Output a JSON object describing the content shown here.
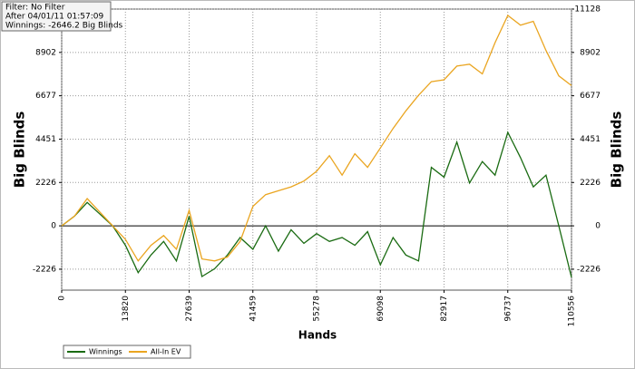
{
  "chart_data": {
    "type": "line",
    "annotations": [
      "Filter: No Filter",
      "After 04/01/11 01:57:09",
      "Winnings: -2646.2 Big Blinds"
    ],
    "x_label": "Hands",
    "y_label": "Big Blinds",
    "x": [
      0,
      2764,
      5528,
      8292,
      11056,
      13820,
      16584,
      19348,
      22112,
      24876,
      27639,
      30403,
      33167,
      35931,
      38695,
      41459,
      44223,
      46987,
      49751,
      52515,
      55278,
      58042,
      60806,
      63570,
      66334,
      69098,
      71862,
      74626,
      77390,
      80154,
      82917,
      85681,
      88445,
      91209,
      93973,
      96737,
      99501,
      102265,
      105029,
      107793,
      110556
    ],
    "series": [
      {
        "name": "Winnings",
        "color": "#1a6b12",
        "values": [
          0,
          500,
          1200,
          600,
          0,
          -1000,
          -2400,
          -1500,
          -800,
          -1800,
          500,
          -2600,
          -2200,
          -1500,
          -600,
          -1200,
          0,
          -1300,
          -200,
          -900,
          -400,
          -800,
          -600,
          -1000,
          -300,
          -2000,
          -600,
          -1500,
          -1800,
          3000,
          2500,
          4300,
          2200,
          3300,
          2600,
          4800,
          3500,
          2000,
          2600,
          0,
          -2646.2
        ]
      },
      {
        "name": "All-In EV",
        "color": "#eaa520",
        "values": [
          0,
          500,
          1400,
          700,
          0,
          -700,
          -1800,
          -1000,
          -500,
          -1200,
          800,
          -1700,
          -1800,
          -1600,
          -800,
          1000,
          1600,
          1800,
          2000,
          2300,
          2800,
          3600,
          2600,
          3700,
          3000,
          4000,
          5000,
          5900,
          6700,
          7400,
          7500,
          8200,
          8300,
          7800,
          9400,
          10800,
          10300,
          10500,
          9000,
          7700,
          7200
        ]
      }
    ],
    "xlim": [
      0,
      110556
    ],
    "xticks": [
      0,
      13820,
      27639,
      41459,
      55278,
      69098,
      82917,
      96737,
      110556
    ],
    "ylim": [
      -3300,
      11128
    ],
    "yticks": [
      -2226,
      0,
      2226,
      4451,
      6677,
      8902,
      11128
    ],
    "grid": true
  }
}
